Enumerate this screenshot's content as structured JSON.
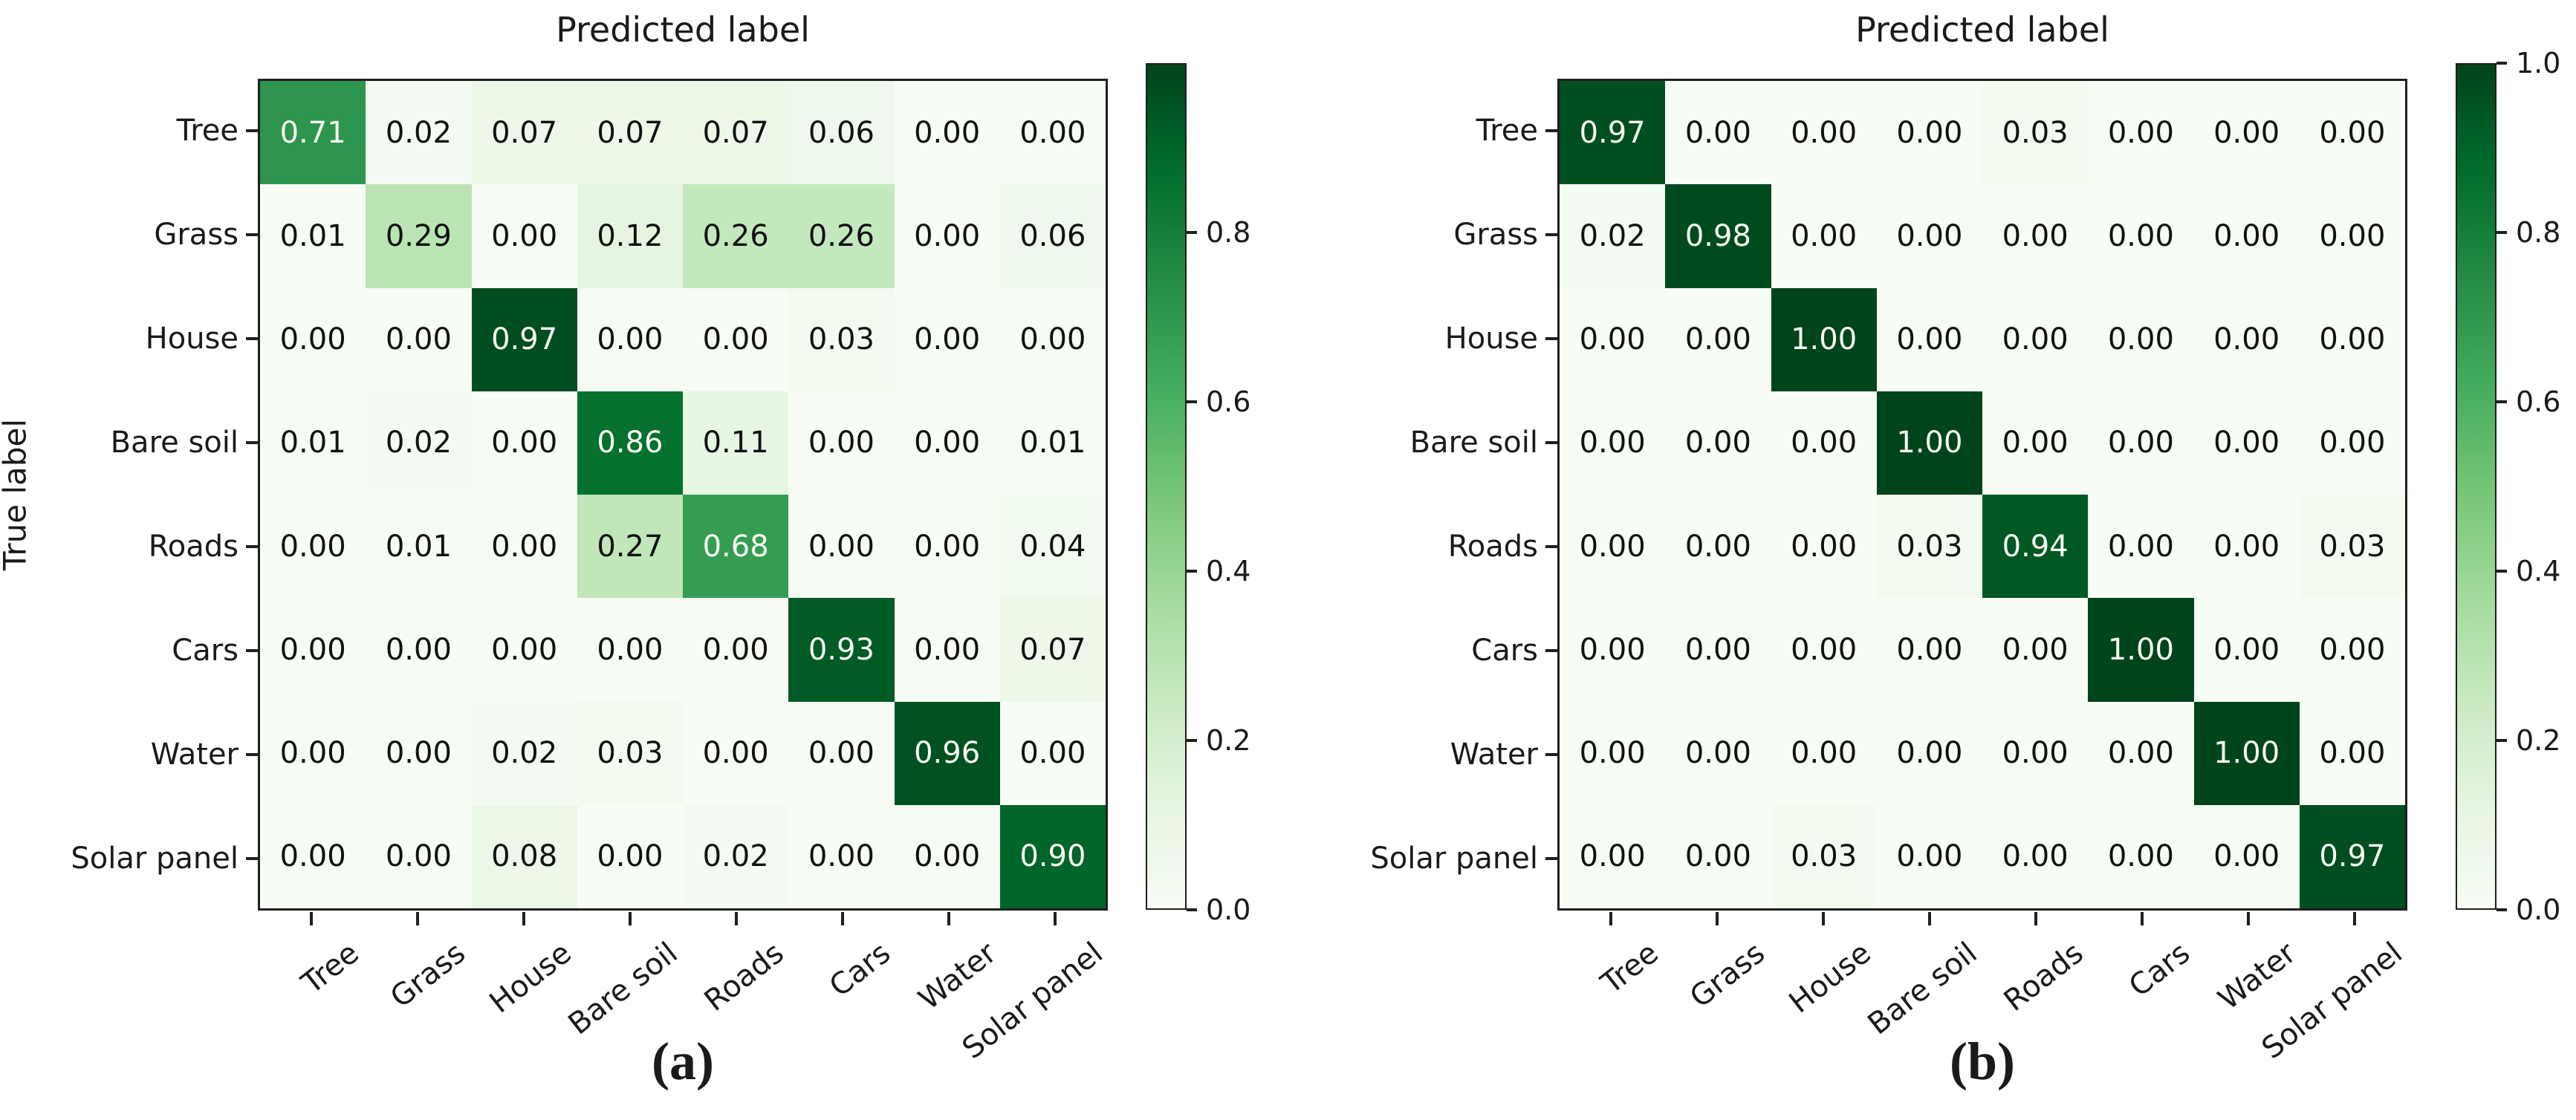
{
  "figure": {
    "background": "#ffffff",
    "axis_color": "#1f1f1f",
    "text_color": "#1a1a1a"
  },
  "colors": {
    "colormap_name": "Greens",
    "colormap_stops": [
      [
        0.0,
        "#f7fcf5"
      ],
      [
        0.125,
        "#e5f5e0"
      ],
      [
        0.25,
        "#c7e9c0"
      ],
      [
        0.375,
        "#a1d99b"
      ],
      [
        0.5,
        "#74c476"
      ],
      [
        0.625,
        "#41ab5d"
      ],
      [
        0.75,
        "#238b45"
      ],
      [
        0.875,
        "#006d2c"
      ],
      [
        1.0,
        "#00441b"
      ]
    ],
    "cell_text_light": "#f7fcf5",
    "cell_text_dark": "#111111",
    "text_light_threshold": 0.5
  },
  "chart_data": [
    {
      "type": "heatmap",
      "panel_caption": "(a)",
      "title": "Predicted label",
      "ylabel": "True label",
      "categories": [
        "Tree",
        "Grass",
        "House",
        "Bare soil",
        "Roads",
        "Cars",
        "Water",
        "Solar panel"
      ],
      "matrix": [
        [
          0.71,
          0.02,
          0.07,
          0.07,
          0.07,
          0.06,
          0.0,
          0.0
        ],
        [
          0.01,
          0.29,
          0.0,
          0.12,
          0.26,
          0.26,
          0.0,
          0.06
        ],
        [
          0.0,
          0.0,
          0.97,
          0.0,
          0.0,
          0.03,
          0.0,
          0.0
        ],
        [
          0.01,
          0.02,
          0.0,
          0.86,
          0.11,
          0.0,
          0.0,
          0.01
        ],
        [
          0.0,
          0.01,
          0.0,
          0.27,
          0.68,
          0.0,
          0.0,
          0.04
        ],
        [
          0.0,
          0.0,
          0.0,
          0.0,
          0.0,
          0.93,
          0.0,
          0.07
        ],
        [
          0.0,
          0.0,
          0.02,
          0.03,
          0.0,
          0.0,
          0.96,
          0.0
        ],
        [
          0.0,
          0.0,
          0.08,
          0.0,
          0.02,
          0.0,
          0.0,
          0.9
        ]
      ],
      "value_decimals": 2,
      "colorbar": {
        "position": "right",
        "range": [
          0.0,
          1.0
        ],
        "ticks": [
          0.8,
          0.6,
          0.4,
          0.2,
          0.0
        ]
      },
      "grid": false
    },
    {
      "type": "heatmap",
      "panel_caption": "(b)",
      "title": "Predicted label",
      "ylabel": "",
      "categories": [
        "Tree",
        "Grass",
        "House",
        "Bare soil",
        "Roads",
        "Cars",
        "Water",
        "Solar panel"
      ],
      "matrix": [
        [
          0.97,
          0.0,
          0.0,
          0.0,
          0.03,
          0.0,
          0.0,
          0.0
        ],
        [
          0.02,
          0.98,
          0.0,
          0.0,
          0.0,
          0.0,
          0.0,
          0.0
        ],
        [
          0.0,
          0.0,
          1.0,
          0.0,
          0.0,
          0.0,
          0.0,
          0.0
        ],
        [
          0.0,
          0.0,
          0.0,
          1.0,
          0.0,
          0.0,
          0.0,
          0.0
        ],
        [
          0.0,
          0.0,
          0.0,
          0.03,
          0.94,
          0.0,
          0.0,
          0.03
        ],
        [
          0.0,
          0.0,
          0.0,
          0.0,
          0.0,
          1.0,
          0.0,
          0.0
        ],
        [
          0.0,
          0.0,
          0.0,
          0.0,
          0.0,
          0.0,
          1.0,
          0.0
        ],
        [
          0.0,
          0.0,
          0.03,
          0.0,
          0.0,
          0.0,
          0.0,
          0.97
        ]
      ],
      "value_decimals": 2,
      "colorbar": {
        "position": "right",
        "range": [
          0.0,
          1.0
        ],
        "ticks": [
          1.0,
          0.8,
          0.6,
          0.4,
          0.2,
          0.0
        ]
      },
      "grid": false
    }
  ]
}
